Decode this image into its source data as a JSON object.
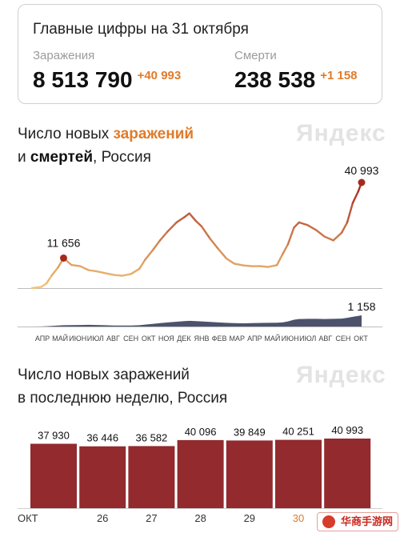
{
  "summary": {
    "title": "Главные цифры на 31 октября",
    "infections_label": "Заражения",
    "infections_value": "8 513 790",
    "infections_delta": "+40 993",
    "deaths_label": "Смерти",
    "deaths_value": "238 538",
    "deaths_delta": "+1 158"
  },
  "chart1_heading": {
    "line1_prefix": "Число новых ",
    "line1_highlight": "заражений",
    "line2_prefix": "и ",
    "line2_highlight": "смертей",
    "line2_suffix": ", Россия"
  },
  "chart2_heading": {
    "line1": "Число новых заражений",
    "line2": "в последнюю неделю, Россия"
  },
  "watermark": "Яндекс",
  "badge_text": "华商手游网",
  "colors": {
    "accent_orange": "#e07b2a",
    "line_start": "#f2c57a",
    "line_end": "#a52a1c",
    "deaths_area": "#3a3f5c",
    "bar": "#922a2e"
  },
  "chart_data": [
    {
      "type": "line",
      "x_labels": [
        "АПР",
        "МАЙ",
        "ИЮН",
        "ИЮЛ",
        "АВГ",
        "СЕН",
        "ОКТ",
        "НОЯ",
        "ДЕК",
        "ЯНВ",
        "ФЕВ",
        "МАР",
        "АПР",
        "МАЙ",
        "ИЮН",
        "ИЮЛ",
        "АВГ",
        "СЕН",
        "ОКТ"
      ],
      "series": [
        {
          "name": "заражений",
          "x": [
            "2020-03-15",
            "2020-04-01",
            "2020-04-10",
            "2020-04-20",
            "2020-05-01",
            "2020-05-11",
            "2020-05-25",
            "2020-06-10",
            "2020-06-25",
            "2020-07-10",
            "2020-07-25",
            "2020-08-10",
            "2020-08-25",
            "2020-09-10",
            "2020-09-25",
            "2020-10-05",
            "2020-10-20",
            "2020-11-01",
            "2020-11-15",
            "2020-12-01",
            "2020-12-15",
            "2020-12-24",
            "2021-01-05",
            "2021-01-15",
            "2021-01-31",
            "2021-02-15",
            "2021-03-01",
            "2021-03-15",
            "2021-04-01",
            "2021-04-15",
            "2021-05-01",
            "2021-05-15",
            "2021-05-31",
            "2021-06-10",
            "2021-06-20",
            "2021-07-01",
            "2021-07-10",
            "2021-07-25",
            "2021-08-10",
            "2021-08-25",
            "2021-09-10",
            "2021-09-25",
            "2021-10-05",
            "2021-10-15",
            "2021-10-25",
            "2021-10-31"
          ],
          "values": [
            0,
            500,
            1800,
            5000,
            8000,
            11656,
            9000,
            8500,
            7000,
            6500,
            5800,
            5100,
            4800,
            5500,
            7500,
            11000,
            15000,
            18500,
            22000,
            25500,
            27500,
            29000,
            26000,
            24000,
            19000,
            15000,
            11500,
            9500,
            8800,
            8500,
            8500,
            8200,
            8900,
            13000,
            17000,
            23500,
            25500,
            24500,
            22500,
            20000,
            18500,
            21500,
            25500,
            33000,
            37500,
            40993
          ]
        },
        {
          "name": "смертей",
          "values": [
            0,
            10,
            30,
            60,
            100,
            130,
            150,
            160,
            170,
            160,
            130,
            110,
            100,
            110,
            130,
            200,
            280,
            350,
            420,
            500,
            560,
            590,
            560,
            530,
            480,
            420,
            380,
            350,
            330,
            350,
            370,
            380,
            390,
            420,
            530,
            700,
            780,
            790,
            790,
            780,
            790,
            820,
            900,
            1000,
            1100,
            1158
          ]
        }
      ],
      "annotations": [
        {
          "label": "11 656",
          "value": 11656
        },
        {
          "label": "40 993",
          "value": 40993
        },
        {
          "label": "1 158",
          "value": 1158
        }
      ]
    },
    {
      "type": "bar",
      "categories": [
        "ОКТ",
        "26",
        "27",
        "28",
        "29",
        "30",
        ""
      ],
      "values": [
        37930,
        36446,
        36582,
        40096,
        39849,
        40251,
        40993
      ],
      "value_labels": [
        "37 930",
        "36 446",
        "36 582",
        "40 096",
        "39 849",
        "40 251",
        "40 993"
      ],
      "highlight_category": "30",
      "highlight_color": "#e07b2a"
    }
  ]
}
